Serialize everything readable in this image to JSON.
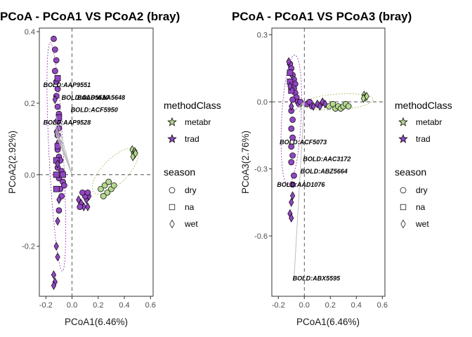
{
  "colors": {
    "metabr": "#b5d98f",
    "trad": "#9246c2",
    "ellipse_metabr": "#a6b95a",
    "ellipse_trad": "#8e2fb0",
    "arrow": "#bfbfbf"
  },
  "legend": {
    "method_title": "methodClass",
    "method_items": [
      "metabr",
      "trad"
    ],
    "season_title": "season",
    "season_items": [
      "dry",
      "na",
      "wet"
    ]
  },
  "chart_data": [
    {
      "type": "scatter",
      "title": "PCoA - PCoA1 VS PCoA2 (bray)",
      "xlabel": "PCoA1(6.46%)",
      "ylabel": "PCoA2(2.92%)",
      "xlim": [
        -0.25,
        0.62
      ],
      "ylim": [
        -0.34,
        0.41
      ],
      "xticks": [
        -0.2,
        0.0,
        0.2,
        0.4,
        0.6
      ],
      "xtick_labels": [
        "-0.2",
        "0.0",
        "0.2",
        "0.4",
        "0.6"
      ],
      "yticks": [
        -0.2,
        0.0,
        0.2,
        0.4
      ],
      "ytick_labels": [
        "-0.2",
        "0.0",
        "0.2",
        "0.4"
      ],
      "grid": false,
      "points": [
        {
          "x": -0.14,
          "y": 0.38,
          "method": "trad",
          "season": "dry"
        },
        {
          "x": -0.13,
          "y": 0.35,
          "method": "trad",
          "season": "dry"
        },
        {
          "x": -0.12,
          "y": 0.32,
          "method": "trad",
          "season": "dry"
        },
        {
          "x": -0.13,
          "y": 0.29,
          "method": "trad",
          "season": "dry"
        },
        {
          "x": -0.12,
          "y": 0.26,
          "method": "trad",
          "season": "dry"
        },
        {
          "x": -0.11,
          "y": 0.24,
          "method": "trad",
          "season": "dry"
        },
        {
          "x": -0.12,
          "y": 0.22,
          "method": "trad",
          "season": "dry"
        },
        {
          "x": -0.11,
          "y": 0.19,
          "method": "trad",
          "season": "dry"
        },
        {
          "x": -0.1,
          "y": 0.17,
          "method": "trad",
          "season": "dry"
        },
        {
          "x": -0.11,
          "y": 0.15,
          "method": "trad",
          "season": "dry"
        },
        {
          "x": -0.1,
          "y": 0.13,
          "method": "trad",
          "season": "dry"
        },
        {
          "x": -0.11,
          "y": 0.11,
          "method": "trad",
          "season": "dry"
        },
        {
          "x": -0.1,
          "y": 0.09,
          "method": "trad",
          "season": "dry"
        },
        {
          "x": -0.11,
          "y": 0.07,
          "method": "trad",
          "season": "dry"
        },
        {
          "x": -0.1,
          "y": 0.05,
          "method": "trad",
          "season": "dry"
        },
        {
          "x": -0.09,
          "y": 0.04,
          "method": "trad",
          "season": "dry"
        },
        {
          "x": -0.11,
          "y": 0.02,
          "method": "trad",
          "season": "dry"
        },
        {
          "x": -0.08,
          "y": 0.01,
          "method": "trad",
          "season": "dry"
        },
        {
          "x": -0.1,
          "y": -0.01,
          "method": "trad",
          "season": "dry"
        },
        {
          "x": -0.07,
          "y": -0.02,
          "method": "trad",
          "season": "dry"
        },
        {
          "x": -0.09,
          "y": -0.04,
          "method": "trad",
          "season": "dry"
        },
        {
          "x": -0.06,
          "y": -0.03,
          "method": "trad",
          "season": "dry"
        },
        {
          "x": -0.08,
          "y": -0.06,
          "method": "trad",
          "season": "dry"
        },
        {
          "x": -0.1,
          "y": -0.1,
          "method": "trad",
          "season": "dry"
        },
        {
          "x": -0.12,
          "y": 0.04,
          "method": "trad",
          "season": "na"
        },
        {
          "x": -0.12,
          "y": 0.0,
          "method": "trad",
          "season": "na"
        },
        {
          "x": -0.11,
          "y": 0.08,
          "method": "trad",
          "season": "na"
        },
        {
          "x": -0.1,
          "y": 0.16,
          "method": "trad",
          "season": "na"
        },
        {
          "x": -0.12,
          "y": -0.04,
          "method": "trad",
          "season": "na"
        },
        {
          "x": -0.07,
          "y": 0.0,
          "method": "trad",
          "season": "na"
        },
        {
          "x": -0.11,
          "y": 0.27,
          "method": "trad",
          "season": "na"
        },
        {
          "x": -0.13,
          "y": 0.21,
          "method": "trad",
          "season": "wet"
        },
        {
          "x": -0.12,
          "y": 0.12,
          "method": "trad",
          "season": "wet"
        },
        {
          "x": -0.11,
          "y": 0.03,
          "method": "trad",
          "season": "wet"
        },
        {
          "x": -0.1,
          "y": -0.07,
          "method": "trad",
          "season": "wet"
        },
        {
          "x": -0.11,
          "y": -0.13,
          "method": "trad",
          "season": "wet"
        },
        {
          "x": -0.12,
          "y": -0.2,
          "method": "trad",
          "season": "wet"
        },
        {
          "x": -0.11,
          "y": -0.23,
          "method": "trad",
          "season": "wet"
        },
        {
          "x": -0.14,
          "y": -0.28,
          "method": "trad",
          "season": "wet"
        },
        {
          "x": -0.13,
          "y": -0.3,
          "method": "trad",
          "season": "wet"
        },
        {
          "x": -0.14,
          "y": -0.31,
          "method": "trad",
          "season": "wet"
        },
        {
          "x": 0.05,
          "y": -0.07,
          "method": "trad",
          "season": "wet"
        },
        {
          "x": 0.07,
          "y": -0.08,
          "method": "trad",
          "season": "wet"
        },
        {
          "x": 0.09,
          "y": -0.09,
          "method": "trad",
          "season": "wet"
        },
        {
          "x": 0.11,
          "y": -0.07,
          "method": "trad",
          "season": "wet"
        },
        {
          "x": 0.12,
          "y": -0.09,
          "method": "trad",
          "season": "wet"
        },
        {
          "x": 0.13,
          "y": -0.06,
          "method": "trad",
          "season": "wet"
        },
        {
          "x": 0.1,
          "y": -0.06,
          "method": "trad",
          "season": "dry"
        },
        {
          "x": 0.08,
          "y": -0.05,
          "method": "trad",
          "season": "dry"
        },
        {
          "x": 0.12,
          "y": -0.05,
          "method": "trad",
          "season": "dry"
        },
        {
          "x": 0.06,
          "y": -0.09,
          "method": "trad",
          "season": "dry"
        },
        {
          "x": 0.22,
          "y": -0.04,
          "method": "metabr",
          "season": "dry"
        },
        {
          "x": 0.25,
          "y": -0.03,
          "method": "metabr",
          "season": "dry"
        },
        {
          "x": 0.27,
          "y": -0.05,
          "method": "metabr",
          "season": "dry"
        },
        {
          "x": 0.28,
          "y": -0.02,
          "method": "metabr",
          "season": "dry"
        },
        {
          "x": 0.3,
          "y": -0.04,
          "method": "metabr",
          "season": "dry"
        },
        {
          "x": 0.32,
          "y": -0.03,
          "method": "metabr",
          "season": "dry"
        },
        {
          "x": 0.24,
          "y": -0.06,
          "method": "metabr",
          "season": "dry"
        },
        {
          "x": 0.46,
          "y": 0.07,
          "method": "metabr",
          "season": "wet"
        },
        {
          "x": 0.47,
          "y": 0.06,
          "method": "metabr",
          "season": "wet"
        },
        {
          "x": 0.48,
          "y": 0.065,
          "method": "metabr",
          "season": "wet"
        },
        {
          "x": 0.475,
          "y": 0.055,
          "method": "metabr",
          "season": "wet"
        },
        {
          "x": 0.465,
          "y": 0.05,
          "method": "metabr",
          "season": "wet"
        },
        {
          "x": 0.485,
          "y": 0.06,
          "method": "metabr",
          "season": "wet"
        }
      ],
      "arrows": [
        {
          "label": "BOLD:AAP9551",
          "x": -0.125,
          "y": 0.165
        },
        {
          "label": "BOLD:AAP9520",
          "x": -0.125,
          "y": 0.14
        },
        {
          "label": "BOLD:AAA5648",
          "x": -0.125,
          "y": 0.13
        },
        {
          "label": "BOLD:ACF5950",
          "x": -0.125,
          "y": 0.12
        },
        {
          "label": "BOLD:AAP9528",
          "x": -0.125,
          "y": 0.115
        }
      ],
      "annotations": [
        {
          "text": "BOLD:AAP9551",
          "x": -0.22,
          "y": 0.245
        },
        {
          "text": "BOLD:AAP9520",
          "x": -0.08,
          "y": 0.21
        },
        {
          "text": "BOLD:AAA5648",
          "x": 0.04,
          "y": 0.21
        },
        {
          "text": "BOLD:ACF5950",
          "x": -0.01,
          "y": 0.175
        },
        {
          "text": "BOLD:AAP9528",
          "x": -0.22,
          "y": 0.14
        }
      ],
      "ellipses": [
        {
          "group": "trad",
          "cx": -0.12,
          "cy": 0.05,
          "rx": 0.055,
          "ry": 0.32,
          "angle": -3
        },
        {
          "group": "metabr",
          "cx": 0.33,
          "cy": 0.01,
          "rx": 0.23,
          "ry": 0.035,
          "angle": -45
        }
      ]
    },
    {
      "type": "scatter",
      "title": "PCoA - PCoA1 VS PCoA3 (bray)",
      "xlabel": "PCoA1(6.46%)",
      "ylabel": "PCoA3(2.76%)",
      "xlim": [
        -0.25,
        0.62
      ],
      "ylim": [
        -0.87,
        0.33
      ],
      "xticks": [
        -0.2,
        0.0,
        0.2,
        0.4,
        0.6
      ],
      "xtick_labels": [
        "-0.2",
        "0.0",
        "0.2",
        "0.4",
        "0.6"
      ],
      "yticks": [
        0.3,
        0.0,
        -0.3,
        -0.6
      ],
      "ytick_labels": [
        "0.3",
        "0.0",
        "-0.3",
        "-0.6"
      ],
      "grid": false,
      "points": [
        {
          "x": -0.11,
          "y": 0.17,
          "method": "trad",
          "season": "dry"
        },
        {
          "x": -0.1,
          "y": 0.15,
          "method": "trad",
          "season": "dry"
        },
        {
          "x": -0.09,
          "y": 0.12,
          "method": "trad",
          "season": "dry"
        },
        {
          "x": -0.08,
          "y": 0.1,
          "method": "trad",
          "season": "dry"
        },
        {
          "x": -0.07,
          "y": 0.08,
          "method": "trad",
          "season": "dry"
        },
        {
          "x": -0.08,
          "y": 0.06,
          "method": "trad",
          "season": "dry"
        },
        {
          "x": -0.07,
          "y": 0.04,
          "method": "trad",
          "season": "dry"
        },
        {
          "x": -0.06,
          "y": 0.02,
          "method": "trad",
          "season": "dry"
        },
        {
          "x": -0.05,
          "y": 0.0,
          "method": "trad",
          "season": "dry"
        },
        {
          "x": -0.09,
          "y": 0.01,
          "method": "trad",
          "season": "dry"
        },
        {
          "x": -0.04,
          "y": -0.01,
          "method": "trad",
          "season": "dry"
        },
        {
          "x": -0.03,
          "y": 0.0,
          "method": "trad",
          "season": "dry"
        },
        {
          "x": -0.1,
          "y": -0.04,
          "method": "trad",
          "season": "dry"
        },
        {
          "x": -0.09,
          "y": -0.08,
          "method": "trad",
          "season": "dry"
        },
        {
          "x": -0.1,
          "y": -0.12,
          "method": "trad",
          "season": "dry"
        },
        {
          "x": -0.09,
          "y": -0.16,
          "method": "trad",
          "season": "dry"
        },
        {
          "x": -0.1,
          "y": -0.2,
          "method": "trad",
          "season": "dry"
        },
        {
          "x": -0.09,
          "y": -0.24,
          "method": "trad",
          "season": "dry"
        },
        {
          "x": -0.1,
          "y": -0.27,
          "method": "trad",
          "season": "dry"
        },
        {
          "x": -0.08,
          "y": -0.33,
          "method": "trad",
          "season": "dry"
        },
        {
          "x": -0.09,
          "y": -0.37,
          "method": "trad",
          "season": "dry"
        },
        {
          "x": 0.02,
          "y": -0.01,
          "method": "trad",
          "season": "dry"
        },
        {
          "x": 0.04,
          "y": 0.0,
          "method": "trad",
          "season": "dry"
        },
        {
          "x": 0.06,
          "y": -0.02,
          "method": "trad",
          "season": "dry"
        },
        {
          "x": -0.11,
          "y": 0.13,
          "method": "trad",
          "season": "na"
        },
        {
          "x": -0.1,
          "y": 0.05,
          "method": "trad",
          "season": "na"
        },
        {
          "x": -0.11,
          "y": 0.09,
          "method": "trad",
          "season": "na"
        },
        {
          "x": -0.12,
          "y": 0.18,
          "method": "trad",
          "season": "wet"
        },
        {
          "x": -0.11,
          "y": 0.07,
          "method": "trad",
          "season": "wet"
        },
        {
          "x": -0.1,
          "y": -0.02,
          "method": "trad",
          "season": "wet"
        },
        {
          "x": -0.09,
          "y": -0.42,
          "method": "trad",
          "season": "wet"
        },
        {
          "x": -0.1,
          "y": -0.45,
          "method": "trad",
          "season": "wet"
        },
        {
          "x": -0.11,
          "y": -0.5,
          "method": "trad",
          "season": "wet"
        },
        {
          "x": -0.1,
          "y": -0.52,
          "method": "trad",
          "season": "wet"
        },
        {
          "x": 0.07,
          "y": -0.02,
          "method": "trad",
          "season": "wet"
        },
        {
          "x": 0.1,
          "y": -0.01,
          "method": "trad",
          "season": "wet"
        },
        {
          "x": 0.12,
          "y": -0.02,
          "method": "trad",
          "season": "wet"
        },
        {
          "x": 0.14,
          "y": 0.0,
          "method": "trad",
          "season": "wet"
        },
        {
          "x": 0.16,
          "y": -0.01,
          "method": "trad",
          "season": "wet"
        },
        {
          "x": 0.19,
          "y": -0.02,
          "method": "metabr",
          "season": "dry"
        },
        {
          "x": 0.22,
          "y": -0.01,
          "method": "metabr",
          "season": "dry"
        },
        {
          "x": 0.24,
          "y": -0.03,
          "method": "metabr",
          "season": "dry"
        },
        {
          "x": 0.26,
          "y": -0.02,
          "method": "metabr",
          "season": "dry"
        },
        {
          "x": 0.28,
          "y": -0.03,
          "method": "metabr",
          "season": "dry"
        },
        {
          "x": 0.3,
          "y": -0.02,
          "method": "metabr",
          "season": "dry"
        },
        {
          "x": 0.32,
          "y": -0.01,
          "method": "metabr",
          "season": "dry"
        },
        {
          "x": 0.34,
          "y": -0.02,
          "method": "metabr",
          "season": "dry"
        },
        {
          "x": 0.46,
          "y": 0.03,
          "method": "metabr",
          "season": "wet"
        },
        {
          "x": 0.47,
          "y": 0.02,
          "method": "metabr",
          "season": "wet"
        },
        {
          "x": 0.48,
          "y": 0.025,
          "method": "metabr",
          "season": "wet"
        },
        {
          "x": 0.455,
          "y": 0.015,
          "method": "metabr",
          "season": "wet"
        }
      ],
      "arrows": [
        {
          "label": "BOLD:ACF5073",
          "x": -0.075,
          "y": -0.04
        },
        {
          "label": "BOLD:AAC3172",
          "x": -0.03,
          "y": -0.03
        },
        {
          "label": "BOLD:ABZ5664",
          "x": -0.03,
          "y": -0.035
        },
        {
          "label": "BOLD:AAD1076",
          "x": -0.04,
          "y": -0.045
        },
        {
          "label": "BOLD:ABX5595",
          "x": -0.08,
          "y": -0.8
        }
      ],
      "annotations": [
        {
          "text": "BOLD:ACF5073",
          "x": -0.19,
          "y": -0.19
        },
        {
          "text": "BOLD:AAC3172",
          "x": -0.01,
          "y": -0.265
        },
        {
          "text": "BOLD:ABZ5664",
          "x": -0.03,
          "y": -0.32
        },
        {
          "text": "BOLD:AAD1076",
          "x": -0.21,
          "y": -0.38
        },
        {
          "text": "BOLD:ABX5595",
          "x": -0.09,
          "y": -0.8
        }
      ],
      "ellipses": [
        {
          "group": "trad",
          "cx": -0.1,
          "cy": -0.08,
          "rx": 0.075,
          "ry": 0.29,
          "angle": 3
        },
        {
          "group": "metabr",
          "cx": 0.26,
          "cy": 0.0,
          "rx": 0.27,
          "ry": 0.035,
          "angle": -4
        }
      ]
    }
  ]
}
